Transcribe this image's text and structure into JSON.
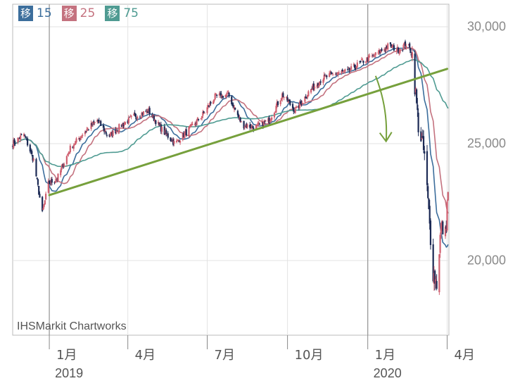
{
  "chart_data": {
    "type": "candlestick",
    "source_watermark": "IHSMarkit Chartworks",
    "yticks": [
      {
        "value": 20000,
        "label": "20,000"
      },
      {
        "value": 25000,
        "label": "25,000"
      },
      {
        "value": 30000,
        "label": "30,000"
      }
    ],
    "ylim": [
      17000,
      31000
    ],
    "xlim": [
      "2018-11-20",
      "2020-04-03"
    ],
    "xticks": [
      {
        "date": "2019-01-01",
        "label": "1月"
      },
      {
        "date": "2019-04-01",
        "label": "4月"
      },
      {
        "date": "2019-07-01",
        "label": "7月"
      },
      {
        "date": "2019-10-01",
        "label": "10月"
      },
      {
        "date": "2020-01-01",
        "label": "1月"
      },
      {
        "date": "2020-04-01",
        "label": "4月"
      }
    ],
    "year_labels": [
      {
        "date": "2019-01-01",
        "label": "2019"
      },
      {
        "date": "2020-01-01",
        "label": "2020"
      }
    ],
    "moving_averages": [
      {
        "prefix": "移",
        "period": "15",
        "color": "#3c6e9c"
      },
      {
        "prefix": "移",
        "period": "25",
        "color": "#c4727f"
      },
      {
        "prefix": "移",
        "period": "75",
        "color": "#4f9b92"
      }
    ],
    "candle_colors": {
      "up": "#d06070",
      "down": "#1c2a55"
    },
    "close_anchors": [
      [
        "2018-11-20",
        25000
      ],
      [
        "2018-12-03",
        25400
      ],
      [
        "2018-12-14",
        24300
      ],
      [
        "2018-12-24",
        22000
      ],
      [
        "2018-12-31",
        23300
      ],
      [
        "2019-01-10",
        23500
      ],
      [
        "2019-01-25",
        24800
      ],
      [
        "2019-02-10",
        25500
      ],
      [
        "2019-02-25",
        26000
      ],
      [
        "2019-03-10",
        25300
      ],
      [
        "2019-03-25",
        25800
      ],
      [
        "2019-04-10",
        26200
      ],
      [
        "2019-04-25",
        26400
      ],
      [
        "2019-05-10",
        25600
      ],
      [
        "2019-05-25",
        25000
      ],
      [
        "2019-06-10",
        25600
      ],
      [
        "2019-06-25",
        26200
      ],
      [
        "2019-07-10",
        27000
      ],
      [
        "2019-07-25",
        27100
      ],
      [
        "2019-08-10",
        25800
      ],
      [
        "2019-08-25",
        25700
      ],
      [
        "2019-09-10",
        26000
      ],
      [
        "2019-09-25",
        27100
      ],
      [
        "2019-10-10",
        26400
      ],
      [
        "2019-10-25",
        27200
      ],
      [
        "2019-11-10",
        27800
      ],
      [
        "2019-11-25",
        28000
      ],
      [
        "2019-12-10",
        28100
      ],
      [
        "2019-12-25",
        28500
      ],
      [
        "2020-01-10",
        28800
      ],
      [
        "2020-01-25",
        29200
      ],
      [
        "2020-02-05",
        29000
      ],
      [
        "2020-02-15",
        29300
      ],
      [
        "2020-02-21",
        28800
      ],
      [
        "2020-02-28",
        25800
      ],
      [
        "2020-03-06",
        24500
      ],
      [
        "2020-03-12",
        21500
      ],
      [
        "2020-03-16",
        19500
      ],
      [
        "2020-03-20",
        19000
      ],
      [
        "2020-03-25",
        21500
      ],
      [
        "2020-03-30",
        21100
      ],
      [
        "2020-04-02",
        23000
      ]
    ],
    "trendline": {
      "start": [
        "2019-01-01",
        22800
      ],
      "end": [
        "2020-04-01",
        28200
      ],
      "color": "#76a03c"
    },
    "arrow": {
      "from": [
        "2020-01-10",
        27900
      ],
      "to": [
        "2020-01-22",
        25100
      ],
      "color": "#76a03c"
    }
  }
}
